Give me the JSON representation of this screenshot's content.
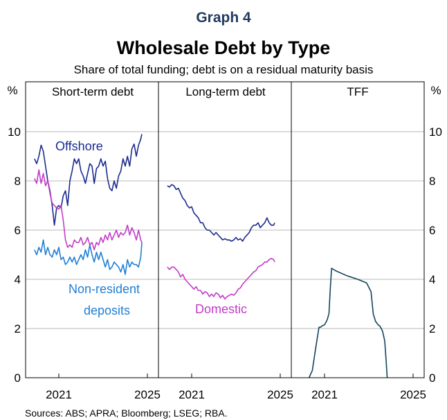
{
  "graph_label": "Graph 4",
  "sources": "Sources: ABS; APRA; Bloomberg; LSEG; RBA.",
  "colors": {
    "offshore": "#1a2a8f",
    "domestic": "#c23bc7",
    "non_resident": "#1f7fd4",
    "tff": "#12435e",
    "grid": "#b8b8b8",
    "frame": "#000000"
  },
  "chart_data": {
    "type": "line",
    "title": "Wholesale Debt by Type",
    "subtitle": "Share of total funding; debt is on a residual maturity basis",
    "ylabel_left": "%",
    "ylabel_right": "%",
    "ylim": [
      0,
      10.5
    ],
    "yticks": [
      0,
      2,
      4,
      6,
      8,
      10
    ],
    "xlim": [
      2019.5,
      2025.5
    ],
    "xticks": [
      2021,
      2025
    ],
    "grid": true,
    "panels": [
      {
        "title": "Short-term debt",
        "annotations": [
          "Offshore",
          "Non-resident",
          "deposits"
        ],
        "series": [
          {
            "name": "Offshore",
            "x": [
              2019.9,
              2020.0,
              2020.1,
              2020.2,
              2020.3,
              2020.4,
              2020.5,
              2020.6,
              2020.7,
              2020.8,
              2020.9,
              2021.0,
              2021.1,
              2021.2,
              2021.3,
              2021.4,
              2021.5,
              2021.6,
              2021.7,
              2021.8,
              2021.9,
              2022.0,
              2022.1,
              2022.2,
              2022.3,
              2022.4,
              2022.5,
              2022.6,
              2022.7,
              2022.8,
              2022.9,
              2023.0,
              2023.1,
              2023.2,
              2023.3,
              2023.4,
              2023.5,
              2023.6,
              2023.7,
              2023.8,
              2023.9,
              2024.0,
              2024.1,
              2024.2,
              2024.3,
              2024.4,
              2024.5,
              2024.6,
              2024.7,
              2024.75
            ],
            "values": [
              8.9,
              8.7,
              9.0,
              9.45,
              9.2,
              8.6,
              8.0,
              7.6,
              7.0,
              6.2,
              6.9,
              7.0,
              6.9,
              7.4,
              7.6,
              7.0,
              8.0,
              8.4,
              8.9,
              8.7,
              8.9,
              8.4,
              8.2,
              7.9,
              8.3,
              8.7,
              8.6,
              7.9,
              8.5,
              8.6,
              8.9,
              8.6,
              8.8,
              8.1,
              7.7,
              7.6,
              8.0,
              7.7,
              8.2,
              8.4,
              8.9,
              8.6,
              9.0,
              8.6,
              9.3,
              9.5,
              9.0,
              9.45,
              9.7,
              9.9
            ]
          },
          {
            "name": "Domestic",
            "x": [
              2019.9,
              2020.0,
              2020.1,
              2020.2,
              2020.3,
              2020.4,
              2020.5,
              2020.6,
              2020.7,
              2020.8,
              2020.9,
              2021.0,
              2021.1,
              2021.2,
              2021.3,
              2021.4,
              2021.5,
              2021.6,
              2021.7,
              2021.8,
              2021.9,
              2022.0,
              2022.1,
              2022.2,
              2022.3,
              2022.4,
              2022.5,
              2022.6,
              2022.7,
              2022.8,
              2022.9,
              2023.0,
              2023.1,
              2023.2,
              2023.3,
              2023.4,
              2023.5,
              2023.6,
              2023.7,
              2023.8,
              2023.9,
              2024.0,
              2024.1,
              2024.2,
              2024.3,
              2024.4,
              2024.5,
              2024.6,
              2024.7,
              2024.75
            ],
            "values": [
              8.1,
              7.9,
              8.45,
              7.9,
              8.3,
              7.8,
              8.0,
              7.5,
              7.1,
              7.0,
              6.9,
              6.85,
              7.0,
              6.4,
              5.6,
              5.3,
              5.4,
              5.3,
              5.6,
              5.5,
              5.5,
              5.7,
              5.4,
              5.5,
              5.7,
              5.4,
              5.5,
              5.2,
              5.5,
              5.4,
              5.7,
              5.5,
              5.8,
              5.6,
              5.9,
              5.6,
              5.8,
              6.0,
              5.7,
              5.9,
              5.8,
              5.9,
              6.2,
              5.8,
              6.1,
              5.9,
              5.6,
              6.0,
              5.6,
              5.5
            ]
          },
          {
            "name": "Non-resident deposits",
            "x": [
              2019.9,
              2020.0,
              2020.1,
              2020.2,
              2020.3,
              2020.4,
              2020.5,
              2020.6,
              2020.7,
              2020.8,
              2020.9,
              2021.0,
              2021.1,
              2021.2,
              2021.3,
              2021.4,
              2021.5,
              2021.6,
              2021.7,
              2021.8,
              2021.9,
              2022.0,
              2022.1,
              2022.2,
              2022.3,
              2022.4,
              2022.5,
              2022.6,
              2022.7,
              2022.8,
              2022.9,
              2023.0,
              2023.1,
              2023.2,
              2023.3,
              2023.4,
              2023.5,
              2023.6,
              2023.7,
              2023.8,
              2023.9,
              2024.0,
              2024.1,
              2024.2,
              2024.3,
              2024.4,
              2024.5,
              2024.6,
              2024.7,
              2024.75
            ],
            "values": [
              5.2,
              5.0,
              5.3,
              5.1,
              5.6,
              5.0,
              5.3,
              5.0,
              4.9,
              5.2,
              5.0,
              5.3,
              4.8,
              4.9,
              4.6,
              4.7,
              4.9,
              4.7,
              4.9,
              4.6,
              4.8,
              5.0,
              4.8,
              5.2,
              4.9,
              5.4,
              5.0,
              4.7,
              5.1,
              4.8,
              5.1,
              4.8,
              4.5,
              4.8,
              4.4,
              4.5,
              4.7,
              4.6,
              4.5,
              4.3,
              4.6,
              4.2,
              4.8,
              4.5,
              4.7,
              4.6,
              4.6,
              4.5,
              4.9,
              5.5
            ]
          }
        ]
      },
      {
        "title": "Long-term debt",
        "annotations": [
          "Domestic"
        ],
        "series": [
          {
            "name": "Offshore",
            "x": [
              2019.9,
              2020.0,
              2020.1,
              2020.2,
              2020.3,
              2020.4,
              2020.5,
              2020.6,
              2020.7,
              2020.8,
              2020.9,
              2021.0,
              2021.1,
              2021.2,
              2021.3,
              2021.4,
              2021.5,
              2021.6,
              2021.7,
              2021.8,
              2021.9,
              2022.0,
              2022.1,
              2022.2,
              2022.3,
              2022.4,
              2022.5,
              2022.6,
              2022.7,
              2022.8,
              2022.9,
              2023.0,
              2023.1,
              2023.2,
              2023.3,
              2023.4,
              2023.5,
              2023.6,
              2023.7,
              2023.8,
              2023.9,
              2024.0,
              2024.1,
              2024.2,
              2024.3,
              2024.4,
              2024.5,
              2024.6,
              2024.7,
              2024.75
            ],
            "values": [
              7.8,
              7.75,
              7.85,
              7.8,
              7.65,
              7.7,
              7.5,
              7.3,
              7.2,
              7.0,
              6.9,
              6.95,
              6.7,
              6.6,
              6.5,
              6.3,
              6.3,
              6.1,
              6.0,
              6.0,
              5.9,
              5.8,
              5.9,
              5.8,
              5.7,
              5.6,
              5.65,
              5.6,
              5.6,
              5.55,
              5.6,
              5.7,
              5.6,
              5.65,
              5.55,
              5.7,
              5.8,
              5.9,
              6.1,
              6.2,
              6.2,
              6.3,
              6.1,
              6.2,
              6.3,
              6.5,
              6.3,
              6.2,
              6.2,
              6.3
            ]
          },
          {
            "name": "Domestic",
            "x": [
              2019.9,
              2020.0,
              2020.1,
              2020.2,
              2020.3,
              2020.4,
              2020.5,
              2020.6,
              2020.7,
              2020.8,
              2020.9,
              2021.0,
              2021.1,
              2021.2,
              2021.3,
              2021.4,
              2021.5,
              2021.6,
              2021.7,
              2021.8,
              2021.9,
              2022.0,
              2022.1,
              2022.2,
              2022.3,
              2022.4,
              2022.5,
              2022.6,
              2022.7,
              2022.8,
              2022.9,
              2023.0,
              2023.1,
              2023.2,
              2023.3,
              2023.4,
              2023.5,
              2023.6,
              2023.7,
              2023.8,
              2023.9,
              2024.0,
              2024.1,
              2024.2,
              2024.3,
              2024.4,
              2024.5,
              2024.6,
              2024.7,
              2024.75
            ],
            "values": [
              4.5,
              4.4,
              4.5,
              4.5,
              4.4,
              4.3,
              4.1,
              4.2,
              4.0,
              3.9,
              3.8,
              3.7,
              3.6,
              3.7,
              3.55,
              3.55,
              3.4,
              3.5,
              3.45,
              3.3,
              3.4,
              3.3,
              3.45,
              3.4,
              3.25,
              3.35,
              3.2,
              3.3,
              3.35,
              3.4,
              3.35,
              3.45,
              3.6,
              3.65,
              3.8,
              3.9,
              4.0,
              4.1,
              4.2,
              4.3,
              4.35,
              4.5,
              4.55,
              4.6,
              4.7,
              4.7,
              4.8,
              4.85,
              4.8,
              4.7
            ]
          }
        ]
      },
      {
        "title": "TFF",
        "annotations": [],
        "series": [
          {
            "name": "TFF",
            "x": [
              2020.3,
              2020.45,
              2020.6,
              2020.75,
              2020.82,
              2020.88,
              2021.0,
              2021.12,
              2021.2,
              2021.26,
              2021.32,
              2021.5,
              2022.0,
              2022.5,
              2022.9,
              2023.1,
              2023.2,
              2023.3,
              2023.42,
              2023.5,
              2023.62,
              2023.72,
              2023.78,
              2023.83
            ],
            "values": [
              0.0,
              0.3,
              1.2,
              2.05,
              2.05,
              2.1,
              2.15,
              2.35,
              2.6,
              3.6,
              4.45,
              4.35,
              4.15,
              4.0,
              3.85,
              3.5,
              2.6,
              2.3,
              2.15,
              2.1,
              1.9,
              1.5,
              0.7,
              0.0
            ]
          }
        ]
      }
    ]
  }
}
